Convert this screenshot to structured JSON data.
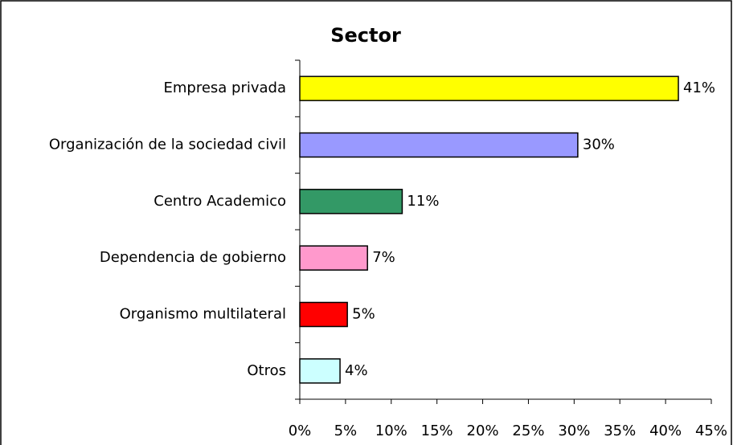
{
  "chart_data": {
    "type": "barh",
    "title": "Sector",
    "categories": [
      "Empresa privada",
      "Organización de la sociedad civil",
      "Centro Academico",
      "Dependencia de gobierno",
      "Organismo multilateral",
      "Otros"
    ],
    "values": [
      41.4,
      30.4,
      11.2,
      7.4,
      5.2,
      4.4
    ],
    "value_labels": [
      "41%",
      "30%",
      "11%",
      "7%",
      "5%",
      "4%"
    ],
    "colors": [
      "#ffff00",
      "#9999ff",
      "#339966",
      "#ff99cc",
      "#ff0000",
      "#ccffff"
    ],
    "xlim": [
      0,
      45
    ],
    "xticks": [
      {
        "value": 0,
        "label": "0%"
      },
      {
        "value": 5,
        "label": "5%"
      },
      {
        "value": 10,
        "label": "10%"
      },
      {
        "value": 15,
        "label": "15%"
      },
      {
        "value": 20,
        "label": "20%"
      },
      {
        "value": 25,
        "label": "25%"
      },
      {
        "value": 30,
        "label": "30%"
      },
      {
        "value": 35,
        "label": "35%"
      },
      {
        "value": 40,
        "label": "40%"
      },
      {
        "value": 45,
        "label": "45%"
      }
    ],
    "grid": false
  }
}
